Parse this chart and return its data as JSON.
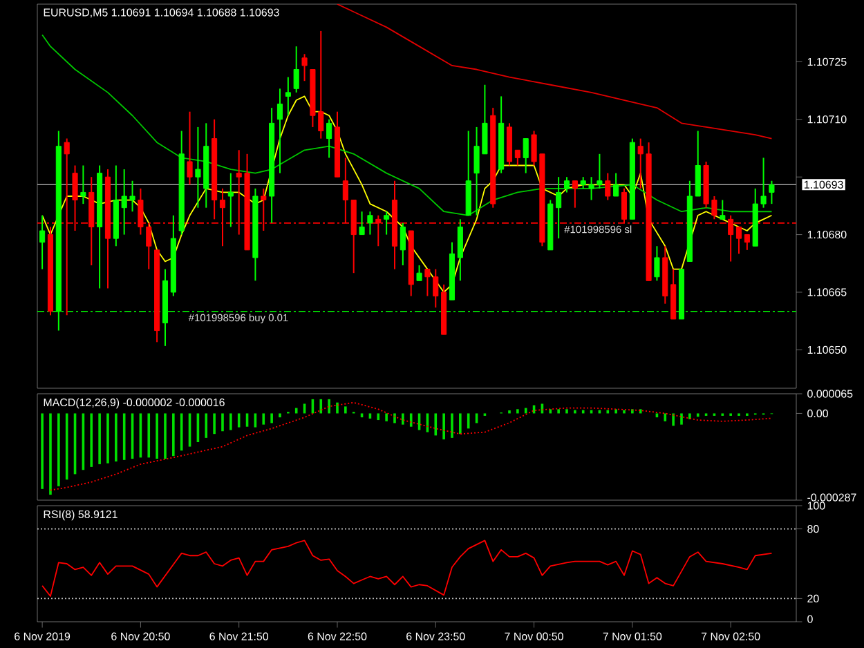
{
  "chart_data": [
    {
      "type": "candlestick",
      "title": "EURUSD,M5 1.10691 1.10694 1.10688 1.10693",
      "x": [
        "2019-11-06T19:50",
        "2019-11-06T19:55",
        "2019-11-06T20:00",
        "2019-11-06T20:05",
        "2019-11-06T20:10",
        "2019-11-06T20:15",
        "2019-11-06T20:20",
        "2019-11-06T20:25",
        "2019-11-06T20:30",
        "2019-11-06T20:35",
        "2019-11-06T20:40",
        "2019-11-06T20:45",
        "2019-11-06T20:50",
        "2019-11-06T20:55",
        "2019-11-06T21:00",
        "2019-11-06T21:05",
        "2019-11-06T21:10",
        "2019-11-06T21:15",
        "2019-11-06T21:20",
        "2019-11-06T21:25",
        "2019-11-06T21:30",
        "2019-11-06T21:35",
        "2019-11-06T21:40",
        "2019-11-06T21:45",
        "2019-11-06T21:50",
        "2019-11-06T21:55",
        "2019-11-06T22:00",
        "2019-11-06T22:05",
        "2019-11-06T22:10",
        "2019-11-06T22:15",
        "2019-11-06T22:20",
        "2019-11-06T22:25",
        "2019-11-06T22:30",
        "2019-11-06T22:35",
        "2019-11-06T22:40",
        "2019-11-06T22:45",
        "2019-11-06T22:50",
        "2019-11-06T22:55",
        "2019-11-06T23:00",
        "2019-11-06T23:05",
        "2019-11-06T23:10",
        "2019-11-06T23:15",
        "2019-11-06T23:20",
        "2019-11-06T23:25",
        "2019-11-06T23:30",
        "2019-11-06T23:35",
        "2019-11-06T23:40",
        "2019-11-06T23:45",
        "2019-11-06T23:50",
        "2019-11-06T23:55",
        "2019-11-07T00:00",
        "2019-11-07T00:05",
        "2019-11-07T00:10",
        "2019-11-07T00:15",
        "2019-11-07T00:20",
        "2019-11-07T00:25",
        "2019-11-07T00:30",
        "2019-11-07T00:35",
        "2019-11-07T00:40",
        "2019-11-07T00:45",
        "2019-11-07T00:50",
        "2019-11-07T00:55",
        "2019-11-07T01:00",
        "2019-11-07T01:05",
        "2019-11-07T01:10",
        "2019-11-07T01:15",
        "2019-11-07T01:20",
        "2019-11-07T01:25",
        "2019-11-07T01:30",
        "2019-11-07T01:35",
        "2019-11-07T01:40",
        "2019-11-07T01:45",
        "2019-11-07T01:50",
        "2019-11-07T01:55",
        "2019-11-07T02:00",
        "2019-11-07T02:05",
        "2019-11-07T02:10",
        "2019-11-07T02:15",
        "2019-11-07T02:20",
        "2019-11-07T02:25",
        "2019-11-07T02:30",
        "2019-11-07T02:35",
        "2019-11-07T02:40",
        "2019-11-07T02:45",
        "2019-11-07T02:50",
        "2019-11-07T02:55",
        "2019-11-07T03:00",
        "2019-11-07T03:05",
        "2019-11-07T03:10",
        "2019-11-07T03:15"
      ],
      "ohlc": [
        [
          1.10678,
          1.10685,
          1.10671,
          1.10681
        ],
        [
          1.1068,
          1.10682,
          1.10659,
          1.1066
        ],
        [
          1.1066,
          1.10707,
          1.10655,
          1.10703
        ],
        [
          1.10704,
          1.10705,
          1.10659,
          1.10701
        ],
        [
          1.10696,
          1.10698,
          1.10681,
          1.10689
        ],
        [
          1.1069,
          1.10698,
          1.10688,
          1.10691
        ],
        [
          1.10691,
          1.10695,
          1.10672,
          1.10682
        ],
        [
          1.10682,
          1.10698,
          1.10666,
          1.10696
        ],
        [
          1.10695,
          1.10697,
          1.10666,
          1.10679
        ],
        [
          1.10679,
          1.10698,
          1.10677,
          1.10689
        ],
        [
          1.10687,
          1.10697,
          1.1068,
          1.1069
        ],
        [
          1.10689,
          1.10694,
          1.10686,
          1.1069
        ],
        [
          1.10689,
          1.10692,
          1.1068,
          1.10682
        ],
        [
          1.10682,
          1.10683,
          1.10671,
          1.10677
        ],
        [
          1.10676,
          1.10676,
          1.10652,
          1.10655
        ],
        [
          1.10657,
          1.10671,
          1.10651,
          1.10668
        ],
        [
          1.10665,
          1.10685,
          1.10664,
          1.10679
        ],
        [
          1.10681,
          1.10707,
          1.1068,
          1.10701
        ],
        [
          1.10699,
          1.10712,
          1.10693,
          1.10695
        ],
        [
          1.10695,
          1.10708,
          1.10687,
          1.10697
        ],
        [
          1.10692,
          1.10709,
          1.10687,
          1.10703
        ],
        [
          1.10705,
          1.1071,
          1.10684,
          1.10689
        ],
        [
          1.10689,
          1.10692,
          1.10677,
          1.10687
        ],
        [
          1.1069,
          1.10696,
          1.10682,
          1.10691
        ],
        [
          1.10696,
          1.10702,
          1.1068,
          1.10695
        ],
        [
          1.10696,
          1.10701,
          1.10676,
          1.10676
        ],
        [
          1.10674,
          1.10692,
          1.10668,
          1.1069
        ],
        [
          1.1069,
          1.10692,
          1.10681,
          1.10689
        ],
        [
          1.1069,
          1.10713,
          1.10683,
          1.10709
        ],
        [
          1.1071,
          1.10718,
          1.10696,
          1.10714
        ],
        [
          1.10716,
          1.10721,
          1.10711,
          1.10717
        ],
        [
          1.10718,
          1.10729,
          1.10717,
          1.10723
        ],
        [
          1.10726,
          1.10727,
          1.1072,
          1.10724
        ],
        [
          1.10723,
          1.10723,
          1.10708,
          1.10711
        ],
        [
          1.10712,
          1.10733,
          1.10705,
          1.10707
        ],
        [
          1.10705,
          1.1071,
          1.107,
          1.10709
        ],
        [
          1.10708,
          1.10712,
          1.10695,
          1.10695
        ],
        [
          1.10694,
          1.107,
          1.10683,
          1.10689
        ],
        [
          1.10689,
          1.10689,
          1.1067,
          1.1068
        ],
        [
          1.1068,
          1.10686,
          1.1068,
          1.10682
        ],
        [
          1.10683,
          1.10686,
          1.1068,
          1.10685
        ],
        [
          1.10684,
          1.10685,
          1.10677,
          1.10683
        ],
        [
          1.10684,
          1.10686,
          1.1068,
          1.10685
        ],
        [
          1.10689,
          1.10694,
          1.10671,
          1.10677
        ],
        [
          1.10676,
          1.10683,
          1.10672,
          1.10682
        ],
        [
          1.10681,
          1.10681,
          1.10664,
          1.10667
        ],
        [
          1.10668,
          1.10672,
          1.10668,
          1.1067
        ],
        [
          1.10671,
          1.10671,
          1.10664,
          1.10669
        ],
        [
          1.10669,
          1.10671,
          1.10661,
          1.10664
        ],
        [
          1.10665,
          1.10667,
          1.10654,
          1.10654
        ],
        [
          1.10663,
          1.10678,
          1.10663,
          1.10675
        ],
        [
          1.10674,
          1.10684,
          1.10668,
          1.10682
        ],
        [
          1.10685,
          1.10707,
          1.10685,
          1.10694
        ],
        [
          1.10696,
          1.10708,
          1.10685,
          1.10703
        ],
        [
          1.10701,
          1.10719,
          1.10701,
          1.10709
        ],
        [
          1.10711,
          1.10713,
          1.10687,
          1.10688
        ],
        [
          1.10697,
          1.10716,
          1.10696,
          1.10709
        ],
        [
          1.10708,
          1.10709,
          1.10698,
          1.10699
        ],
        [
          1.10702,
          1.10702,
          1.10698,
          1.107
        ],
        [
          1.107,
          1.10705,
          1.10696,
          1.10705
        ],
        [
          1.10706,
          1.10707,
          1.10698,
          1.10699
        ],
        [
          1.10701,
          1.10701,
          1.10677,
          1.10678
        ],
        [
          1.10676,
          1.10689,
          1.10676,
          1.10688
        ],
        [
          1.10687,
          1.10695,
          1.10679,
          1.10691
        ],
        [
          1.10692,
          1.10695,
          1.10691,
          1.10694
        ],
        [
          1.10694,
          1.10694,
          1.10687,
          1.10692
        ],
        [
          1.10693,
          1.10695,
          1.10692,
          1.10694
        ],
        [
          1.10692,
          1.10695,
          1.10689,
          1.10693
        ],
        [
          1.10693,
          1.10701,
          1.10692,
          1.10694
        ],
        [
          1.10694,
          1.10696,
          1.10689,
          1.1069
        ],
        [
          1.1069,
          1.10696,
          1.1069,
          1.10693
        ],
        [
          1.10691,
          1.10692,
          1.10683,
          1.10684
        ],
        [
          1.10684,
          1.10705,
          1.10684,
          1.10704
        ],
        [
          1.10703,
          1.10705,
          1.10692,
          1.10701
        ],
        [
          1.10701,
          1.10704,
          1.10668,
          1.10668
        ],
        [
          1.10669,
          1.10677,
          1.10668,
          1.10674
        ],
        [
          1.10674,
          1.10677,
          1.10662,
          1.10664
        ],
        [
          1.10667,
          1.10671,
          1.10658,
          1.10658
        ],
        [
          1.10658,
          1.10671,
          1.10658,
          1.10671
        ],
        [
          1.10673,
          1.10694,
          1.10673,
          1.1069
        ],
        [
          1.1069,
          1.10707,
          1.1069,
          1.10698
        ],
        [
          1.10698,
          1.10699,
          1.10687,
          1.10688
        ],
        [
          1.10689,
          1.1069,
          1.10684,
          1.10685
        ],
        [
          1.10684,
          1.10689,
          1.10684,
          1.10685
        ],
        [
          1.10684,
          1.10685,
          1.10673,
          1.1068
        ],
        [
          1.10682,
          1.10682,
          1.10675,
          1.10679
        ],
        [
          1.1068,
          1.1068,
          1.10676,
          1.10678
        ],
        [
          1.10677,
          1.10692,
          1.10677,
          1.10688
        ],
        [
          1.10688,
          1.107,
          1.10687,
          1.1069
        ],
        [
          1.10691,
          1.10694,
          1.10688,
          1.10693
        ]
      ],
      "series": [
        {
          "type": "line",
          "color": "#ffff00",
          "x": [
            "2019-11-06T19:50",
            "2019-11-06T19:55",
            "2019-11-06T20:05",
            "2019-11-06T20:15",
            "2019-11-06T20:25",
            "2019-11-06T20:35",
            "2019-11-06T20:45",
            "2019-11-06T20:50",
            "2019-11-06T20:55",
            "2019-11-06T21:00",
            "2019-11-06T21:05",
            "2019-11-06T21:10",
            "2019-11-06T21:15",
            "2019-11-06T21:20",
            "2019-11-06T21:30",
            "2019-11-06T21:40",
            "2019-11-06T21:50",
            "2019-11-06T22:00",
            "2019-11-06T22:05",
            "2019-11-06T22:10",
            "2019-11-06T22:15",
            "2019-11-06T22:20",
            "2019-11-06T22:25",
            "2019-11-06T22:30",
            "2019-11-06T22:35",
            "2019-11-06T22:40",
            "2019-11-06T22:45",
            "2019-11-06T22:50",
            "2019-11-06T22:55",
            "2019-11-06T23:05",
            "2019-11-06T23:10",
            "2019-11-06T23:20",
            "2019-11-06T23:30",
            "2019-11-06T23:35",
            "2019-11-06T23:40",
            "2019-11-06T23:45",
            "2019-11-06T23:55",
            "2019-11-07T00:00",
            "2019-11-07T00:05",
            "2019-11-07T00:15",
            "2019-11-07T00:20",
            "2019-11-07T00:25",
            "2019-11-07T00:30",
            "2019-11-07T00:40",
            "2019-11-07T00:50",
            "2019-11-07T00:55",
            "2019-11-07T01:05",
            "2019-11-07T01:10",
            "2019-11-07T01:20",
            "2019-11-07T01:35",
            "2019-11-07T01:45",
            "2019-11-07T01:50",
            "2019-11-07T01:55",
            "2019-11-07T02:00",
            "2019-11-07T02:10",
            "2019-11-07T02:15",
            "2019-11-07T02:20",
            "2019-11-07T02:25",
            "2019-11-07T02:30",
            "2019-11-07T02:35",
            "2019-11-07T02:40",
            "2019-11-07T02:45",
            "2019-11-07T02:55",
            "2019-11-07T03:00",
            "2019-11-07T03:05",
            "2019-11-07T03:10",
            "2019-11-07T03:15"
          ],
          "values": [
            1.10685,
            1.1068,
            1.1069,
            1.1069,
            1.10688,
            1.10689,
            1.10689,
            1.10687,
            1.10683,
            1.10676,
            1.10673,
            1.10674,
            1.1068,
            1.10685,
            1.10692,
            1.10691,
            1.10691,
            1.10688,
            1.10689,
            null,
            1.10705,
            1.10711,
            1.10715,
            1.10716,
            1.10712,
            1.10712,
            1.10711,
            1.10707,
            1.10701,
            1.10693,
            1.10688,
            1.10686,
            1.10682,
            1.10677,
            1.10674,
            1.10671,
            1.10665,
            1.10667,
            1.10674,
            1.10684,
            1.10692,
            1.10694,
            1.10698,
            1.10698,
            1.10698,
            1.10692,
            1.1069,
            1.10692,
            1.10693,
            1.10693,
            1.10693,
            1.1069,
            1.10696,
            1.10684,
            1.10677,
            1.10671,
            1.10671,
            null,
            1.10685,
            1.10686,
            1.10685,
            1.10684,
            1.10682,
            1.10681,
            1.10683,
            1.10684,
            1.10685
          ]
        },
        {
          "type": "line",
          "color": "#00c800",
          "x": [
            "2019-11-06T19:50",
            "2019-11-06T19:55",
            "2019-11-06T20:10",
            "2019-11-06T20:30",
            "2019-11-06T20:45",
            "2019-11-06T21:00",
            "2019-11-06T21:15",
            "2019-11-06T21:30",
            "2019-11-06T21:45",
            "2019-11-06T22:00",
            "2019-11-06T22:10",
            "2019-11-06T22:30",
            "2019-11-06T22:45",
            "2019-11-06T23:00",
            "2019-11-06T23:20",
            "2019-11-06T23:40",
            "2019-11-06T23:55",
            "2019-11-07T00:10",
            "2019-11-07T00:25",
            "2019-11-07T00:40",
            "2019-11-07T00:55",
            "2019-11-07T01:05",
            "2019-11-07T01:25",
            "2019-11-07T01:50",
            "2019-11-07T02:05",
            "2019-11-07T02:20",
            "2019-11-07T02:35",
            "2019-11-07T02:50",
            "2019-11-07T03:05",
            "2019-11-07T03:15"
          ],
          "values": [
            1.10732,
            1.10729,
            1.10723,
            1.10717,
            1.10711,
            1.10704,
            1.107,
            1.10699,
            1.10697,
            1.10696,
            1.10697,
            1.10702,
            1.10703,
            1.10701,
            1.10696,
            1.10692,
            1.10686,
            1.10685,
            1.10689,
            1.10691,
            1.10692,
            1.10692,
            1.10692,
            1.10693,
            1.10689,
            1.10686,
            1.10687,
            1.10686,
            1.10686,
            1.10686
          ]
        },
        {
          "type": "line",
          "color": "#e00000",
          "x": [
            "2019-11-06T22:50",
            "2019-11-06T23:20",
            "2019-11-06T23:40",
            "2019-11-07T00:00",
            "2019-11-07T00:15",
            "2019-11-07T00:35",
            "2019-11-07T01:00",
            "2019-11-07T01:25",
            "2019-11-07T01:55",
            "2019-11-07T02:05",
            "2019-11-07T02:20",
            "2019-11-07T02:35",
            "2019-11-07T03:05",
            "2019-11-07T03:15"
          ],
          "values": [
            1.1074,
            1.10734,
            1.10729,
            1.10724,
            1.10723,
            1.10721,
            1.10719,
            1.10717,
            1.10714,
            1.10713,
            1.10709,
            1.10708,
            1.10706,
            1.10705
          ]
        }
      ],
      "xlim": [
        "2019-11-06T19:47",
        "2019-11-07T03:30"
      ],
      "ylim": [
        1.1064,
        1.1074
      ],
      "yticks": [
        {
          "value": 1.10725,
          "label": "1.10725"
        },
        {
          "value": 1.1071,
          "label": "1.10710"
        },
        {
          "value": 1.10695,
          "label": null
        },
        {
          "value": 1.1068,
          "label": "1.10680"
        },
        {
          "value": 1.10665,
          "label": "1.10665"
        },
        {
          "value": 1.1065,
          "label": "1.10650"
        }
      ],
      "ref_lines": [
        {
          "axis": "y",
          "value": 1.10693,
          "label": "1.10693",
          "color": "#a0a0a0"
        },
        {
          "axis": "y",
          "value": 1.10683,
          "label": "#101998596 sl",
          "color": "#ff0000",
          "line_style": "dashed"
        },
        {
          "axis": "y",
          "value": 1.1066,
          "label": "#101998596 buy 0.01",
          "color": "#00ff00",
          "line_style": "dashed"
        }
      ],
      "tick_labels": "y"
    },
    {
      "type": "bar",
      "title": "MACD(12,26,9) -0.000002 -0.000016",
      "x": [
        "2019-11-06T19:50",
        "2019-11-06T19:55",
        "2019-11-06T20:00",
        "2019-11-06T20:05",
        "2019-11-06T20:10",
        "2019-11-06T20:15",
        "2019-11-06T20:20",
        "2019-11-06T20:25",
        "2019-11-06T20:30",
        "2019-11-06T20:35",
        "2019-11-06T20:40",
        "2019-11-06T20:45",
        "2019-11-06T20:50",
        "2019-11-06T20:55",
        "2019-11-06T21:00",
        "2019-11-06T21:05",
        "2019-11-06T21:10",
        "2019-11-06T21:15",
        "2019-11-06T21:20",
        "2019-11-06T21:25",
        "2019-11-06T21:30",
        "2019-11-06T21:35",
        "2019-11-06T21:40",
        "2019-11-06T21:45",
        "2019-11-06T21:50",
        "2019-11-06T21:55",
        "2019-11-06T22:00",
        "2019-11-06T22:05",
        "2019-11-06T22:10",
        "2019-11-06T22:15",
        "2019-11-06T22:20",
        "2019-11-06T22:25",
        "2019-11-06T22:30",
        "2019-11-06T22:35",
        "2019-11-06T22:40",
        "2019-11-06T22:45",
        "2019-11-06T22:50",
        "2019-11-06T22:55",
        "2019-11-06T23:00",
        "2019-11-06T23:05",
        "2019-11-06T23:10",
        "2019-11-06T23:15",
        "2019-11-06T23:20",
        "2019-11-06T23:25",
        "2019-11-06T23:30",
        "2019-11-06T23:35",
        "2019-11-06T23:40",
        "2019-11-06T23:45",
        "2019-11-06T23:50",
        "2019-11-06T23:55",
        "2019-11-07T00:00",
        "2019-11-07T00:05",
        "2019-11-07T00:10",
        "2019-11-07T00:15",
        "2019-11-07T00:20",
        "2019-11-07T00:25",
        "2019-11-07T00:30",
        "2019-11-07T00:35",
        "2019-11-07T00:40",
        "2019-11-07T00:45",
        "2019-11-07T00:50",
        "2019-11-07T00:55",
        "2019-11-07T01:00",
        "2019-11-07T01:05",
        "2019-11-07T01:10",
        "2019-11-07T01:15",
        "2019-11-07T01:20",
        "2019-11-07T01:25",
        "2019-11-07T01:30",
        "2019-11-07T01:35",
        "2019-11-07T01:40",
        "2019-11-07T01:45",
        "2019-11-07T01:50",
        "2019-11-07T01:55",
        "2019-11-07T02:00",
        "2019-11-07T02:05",
        "2019-11-07T02:10",
        "2019-11-07T02:15",
        "2019-11-07T02:20",
        "2019-11-07T02:25",
        "2019-11-07T02:30",
        "2019-11-07T02:35",
        "2019-11-07T02:40",
        "2019-11-07T02:45",
        "2019-11-07T02:50",
        "2019-11-07T02:55",
        "2019-11-07T03:00",
        "2019-11-07T03:05",
        "2019-11-07T03:10",
        "2019-11-07T03:15"
      ],
      "series": [
        {
          "color": "#00e000",
          "values": [
            -0.00025,
            -0.000269,
            -0.000241,
            -0.000219,
            -0.000201,
            -0.000187,
            -0.000177,
            -0.000168,
            -0.000165,
            -0.000159,
            -0.000154,
            -0.00015,
            -0.000146,
            -0.000146,
            -0.00015,
            -0.00015,
            -0.000141,
            -0.000123,
            -0.00011,
            -9.5e-05,
            -8.1e-05,
            -6.8e-05,
            -5.9e-05,
            -5.5e-05,
            -4.6e-05,
            -4.4e-05,
            -4.6e-05,
            -3.7e-05,
            -3.2e-05,
            -1.3e-05,
            5e-06,
            1.8e-05,
            3.2e-05,
            4.7e-05,
            4.7e-05,
            4.7e-05,
            3.6e-05,
            2.3e-05,
            5e-06,
            -1.3e-05,
            -1.7e-05,
            -2.2e-05,
            -2.6e-05,
            -3.2e-05,
            -3.7e-05,
            -4.4e-05,
            -5.5e-05,
            -6.2e-05,
            -7.3e-05,
            -8.6e-05,
            -8.1e-05,
            -6.8e-05,
            -5e-05,
            -3.2e-05,
            -8e-06,
            null,
            3e-06,
            1e-05,
            1.4e-05,
            1.8e-05,
            2.7e-05,
            3.2e-05,
            1.4e-05,
            1.4e-05,
            1.4e-05,
            1.1e-05,
            1.1e-05,
            1.1e-05,
            1.1e-05,
            1.1e-05,
            1.4e-05,
            1.1e-05,
            1.4e-05,
            1.4e-05,
            null,
            -1.3e-05,
            -2.6e-05,
            -4.1e-05,
            -3.7e-05,
            -1.9e-05,
            -1.1e-05,
            -8e-06,
            -8e-06,
            -8e-06,
            -8e-06,
            -8e-06,
            -8e-06,
            -4e-06,
            -4e-06,
            -2e-06
          ]
        },
        {
          "type": "line",
          "color": "#ff0000",
          "line_style": "dotted",
          "x": [
            "2019-11-06T19:55",
            "2019-11-06T20:05",
            "2019-11-06T20:20",
            "2019-11-06T20:35",
            "2019-11-06T20:50",
            "2019-11-06T21:10",
            "2019-11-06T21:25",
            "2019-11-06T21:40",
            "2019-11-06T21:55",
            "2019-11-06T22:10",
            "2019-11-06T22:30",
            "2019-11-06T22:45",
            "2019-11-06T23:00",
            "2019-11-06T23:15",
            "2019-11-06T23:30",
            "2019-11-06T23:50",
            "2019-11-07T00:05",
            "2019-11-07T00:20",
            "2019-11-07T00:35",
            "2019-11-07T00:50",
            "2019-11-07T01:10",
            "2019-11-07T01:25",
            "2019-11-07T01:40",
            "2019-11-07T01:55",
            "2019-11-07T02:10",
            "2019-11-07T02:30",
            "2019-11-07T02:45",
            "2019-11-07T03:00",
            "2019-11-07T03:15"
          ],
          "values": [
            -0.000254,
            -0.000245,
            -0.000227,
            -0.000201,
            -0.000168,
            -0.000146,
            -0.000128,
            -0.00011,
            -7.3e-05,
            -5e-05,
            -1.3e-05,
            2.3e-05,
            3.6e-05,
            1.4e-05,
            -2.2e-05,
            -5e-05,
            -6.8e-05,
            -6.2e-05,
            -3.1e-05,
            1e-05,
            1.8e-05,
            1.8e-05,
            1.4e-05,
            1e-05,
            0,
            -2.2e-05,
            -2.6e-05,
            -2.2e-05,
            -1.6e-05
          ]
        }
      ],
      "xlim": [
        "2019-11-06T19:47",
        "2019-11-07T03:30"
      ],
      "ylim": [
        -0.000287,
        6.5e-05
      ],
      "yticks": [
        {
          "value": 6.5e-05,
          "label": "0.000065"
        },
        {
          "value": 0,
          "label": "0.00"
        },
        {
          "value": -0.000287,
          "label": "-0.000287"
        }
      ],
      "tick_labels": "y"
    },
    {
      "type": "line",
      "title": "RSI(8) 58.9121",
      "series": [
        {
          "color": "#ff0000",
          "x": [
            "2019-11-06T19:50",
            "2019-11-06T19:55",
            "2019-11-06T20:00",
            "2019-11-06T20:05",
            "2019-11-06T20:10",
            "2019-11-06T20:15",
            "2019-11-06T20:20",
            "2019-11-06T20:25",
            "2019-11-06T20:30",
            "2019-11-06T20:35",
            "2019-11-06T20:45",
            "2019-11-06T20:55",
            "2019-11-06T21:00",
            "2019-11-06T21:15",
            "2019-11-06T21:20",
            "2019-11-06T21:25",
            "2019-11-06T21:30",
            "2019-11-06T21:35",
            "2019-11-06T21:40",
            "2019-11-06T21:45",
            "2019-11-06T21:50",
            "2019-11-06T21:55",
            "2019-11-06T22:00",
            "2019-11-06T22:05",
            "2019-11-06T22:10",
            "2019-11-06T22:20",
            "2019-11-06T22:25",
            "2019-11-06T22:30",
            "2019-11-06T22:35",
            "2019-11-06T22:40",
            "2019-11-06T22:45",
            "2019-11-06T22:50",
            "2019-11-06T22:55",
            "2019-11-06T23:00",
            "2019-11-06T23:05",
            "2019-11-06T23:10",
            "2019-11-06T23:15",
            "2019-11-06T23:20",
            "2019-11-06T23:25",
            "2019-11-06T23:30",
            "2019-11-06T23:35",
            "2019-11-06T23:40",
            "2019-11-06T23:45",
            "2019-11-06T23:55",
            "2019-11-07T00:00",
            "2019-11-07T00:05",
            "2019-11-07T00:10",
            "2019-11-07T00:20",
            "2019-11-07T00:25",
            "2019-11-07T00:30",
            "2019-11-07T00:35",
            "2019-11-07T00:40",
            "2019-11-07T00:45",
            "2019-11-07T00:50",
            "2019-11-07T00:55",
            "2019-11-07T01:00",
            "2019-11-07T01:10",
            "2019-11-07T01:15",
            "2019-11-07T01:25",
            "2019-11-07T01:30",
            "2019-11-07T01:35",
            "2019-11-07T01:40",
            "2019-11-07T01:45",
            "2019-11-07T01:50",
            "2019-11-07T01:55",
            "2019-11-07T02:00",
            "2019-11-07T02:05",
            "2019-11-07T02:10",
            "2019-11-07T02:15",
            "2019-11-07T02:25",
            "2019-11-07T02:30",
            "2019-11-07T02:35",
            "2019-11-07T02:45",
            "2019-11-07T02:55",
            "2019-11-07T03:00",
            "2019-11-07T03:05",
            "2019-11-07T03:15"
          ],
          "values": [
            31,
            22,
            51,
            50,
            45,
            47,
            40,
            51,
            41,
            48,
            48,
            41,
            30,
            59,
            57,
            57,
            60,
            50,
            48,
            53,
            55,
            40,
            52,
            52,
            62,
            65,
            68,
            70,
            57,
            53,
            54,
            44,
            39,
            33,
            36,
            39,
            37,
            39,
            32,
            39,
            30,
            32,
            31,
            23,
            47,
            56,
            63,
            70,
            52,
            62,
            56,
            56,
            59,
            55,
            40,
            48,
            51,
            52,
            52,
            52,
            49,
            52,
            40,
            61,
            58,
            33,
            38,
            33,
            31,
            56,
            60,
            52,
            50,
            47,
            45,
            57,
            59
          ]
        }
      ],
      "xlim": [
        "2019-11-06T19:47",
        "2019-11-07T03:30"
      ],
      "xticks": [
        {
          "value": "2019-11-06T19:50",
          "label": "6 Nov 2019"
        },
        {
          "value": "2019-11-06T20:50",
          "label": "6 Nov 20:50"
        },
        {
          "value": "2019-11-06T21:50",
          "label": "6 Nov 21:50"
        },
        {
          "value": "2019-11-06T22:50",
          "label": "6 Nov 22:50"
        },
        {
          "value": "2019-11-06T23:50",
          "label": "6 Nov 23:50"
        },
        {
          "value": "2019-11-07T00:50",
          "label": "7 Nov 00:50"
        },
        {
          "value": "2019-11-07T01:50",
          "label": "7 Nov 01:50"
        },
        {
          "value": "2019-11-07T02:50",
          "label": "7 Nov 02:50"
        }
      ],
      "ylim": [
        0,
        100
      ],
      "yticks": [
        100,
        80,
        20,
        0
      ],
      "ref_lines": [
        {
          "axis": "y",
          "value": 80,
          "color": "#c0c0c0",
          "line_style": "dotted"
        },
        {
          "axis": "y",
          "value": 20,
          "color": "#c0c0c0",
          "line_style": "dotted"
        }
      ]
    }
  ]
}
